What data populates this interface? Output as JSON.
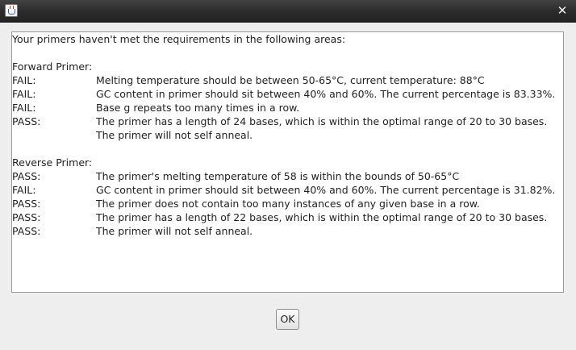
{
  "window": {
    "close_glyph": "✕"
  },
  "message": {
    "intro": "Your primers haven't met the requirements in the following areas:",
    "forward": {
      "heading": "Forward Primer:",
      "rows": [
        {
          "status": "FAIL:",
          "text": "Melting temperature should be between 50-65°C, current temperature: 88°C"
        },
        {
          "status": "FAIL:",
          "text": "GC content in primer should sit between 40% and 60%. The current percentage is 83.33%."
        },
        {
          "status": "FAIL:",
          "text": "Base g repeats too many times in a row."
        },
        {
          "status": "PASS:",
          "text": "The primer has a length of 24 bases, which is within the optimal range of 20 to 30 bases."
        },
        {
          "status": "",
          "text": "The primer will not self anneal."
        }
      ]
    },
    "reverse": {
      "heading": "Reverse Primer:",
      "rows": [
        {
          "status": "PASS:",
          "text": "The primer's melting temperature of 58 is within the bounds of 50-65°C"
        },
        {
          "status": "FAIL:",
          "text": "GC content in primer should sit between 40% and 60%. The current percentage is 31.82%."
        },
        {
          "status": "PASS:",
          "text": "The primer does not contain too many instances of any given base in a row."
        },
        {
          "status": "PASS:",
          "text": "The primer has a length of 22 bases, which is within the optimal range of 20 to 30 bases."
        },
        {
          "status": "PASS:",
          "text": "The primer will not self anneal."
        }
      ]
    }
  },
  "buttons": {
    "ok_label": "OK"
  },
  "icons": {
    "app": "java-app-icon",
    "close": "close-icon"
  },
  "colors": {
    "titlebar": "#2b2b2b",
    "dialog_bg": "#eeeeee",
    "content_bg": "#ffffff"
  }
}
